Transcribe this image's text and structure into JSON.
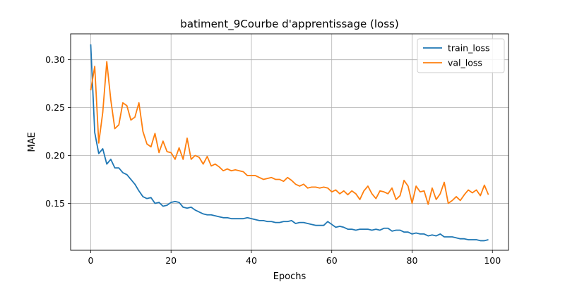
{
  "chart_data": {
    "type": "line",
    "title": "batiment_9Courbe d'apprentissage (loss)",
    "xlabel": "Epochs",
    "ylabel": "MAE",
    "xlim": [
      -5,
      104
    ],
    "ylim": [
      0.101,
      0.327
    ],
    "xticks": [
      0,
      20,
      40,
      60,
      80,
      100
    ],
    "yticks": [
      0.15,
      0.2,
      0.25,
      0.3
    ],
    "ytick_labels": [
      "0.15",
      "0.20",
      "0.25",
      "0.30"
    ],
    "grid": true,
    "legend_position": "top-right",
    "series": [
      {
        "name": "train_loss",
        "color": "#1f77b4",
        "x": [
          0,
          1,
          2,
          3,
          4,
          5,
          6,
          7,
          8,
          9,
          10,
          11,
          12,
          13,
          14,
          15,
          16,
          17,
          18,
          19,
          20,
          21,
          22,
          23,
          24,
          25,
          26,
          27,
          28,
          29,
          30,
          31,
          32,
          33,
          34,
          35,
          36,
          37,
          38,
          39,
          40,
          41,
          42,
          43,
          44,
          45,
          46,
          47,
          48,
          49,
          50,
          51,
          52,
          53,
          54,
          55,
          56,
          57,
          58,
          59,
          60,
          61,
          62,
          63,
          64,
          65,
          66,
          67,
          68,
          69,
          70,
          71,
          72,
          73,
          74,
          75,
          76,
          77,
          78,
          79,
          80,
          81,
          82,
          83,
          84,
          85,
          86,
          87,
          88,
          89,
          90,
          91,
          92,
          93,
          94,
          95,
          96,
          97,
          98,
          99
        ],
        "values": [
          0.316,
          0.224,
          0.202,
          0.207,
          0.191,
          0.196,
          0.187,
          0.187,
          0.182,
          0.18,
          0.175,
          0.17,
          0.163,
          0.157,
          0.155,
          0.156,
          0.15,
          0.151,
          0.147,
          0.148,
          0.151,
          0.152,
          0.151,
          0.146,
          0.145,
          0.146,
          0.143,
          0.141,
          0.139,
          0.138,
          0.138,
          0.137,
          0.136,
          0.135,
          0.135,
          0.134,
          0.134,
          0.134,
          0.134,
          0.135,
          0.134,
          0.133,
          0.132,
          0.132,
          0.131,
          0.131,
          0.13,
          0.13,
          0.131,
          0.131,
          0.132,
          0.129,
          0.13,
          0.13,
          0.129,
          0.128,
          0.127,
          0.127,
          0.127,
          0.131,
          0.128,
          0.125,
          0.126,
          0.125,
          0.123,
          0.123,
          0.122,
          0.123,
          0.123,
          0.123,
          0.122,
          0.123,
          0.122,
          0.124,
          0.124,
          0.121,
          0.122,
          0.122,
          0.12,
          0.12,
          0.118,
          0.119,
          0.118,
          0.118,
          0.116,
          0.117,
          0.116,
          0.118,
          0.115,
          0.115,
          0.115,
          0.114,
          0.113,
          0.113,
          0.112,
          0.112,
          0.112,
          0.111,
          0.111,
          0.112
        ]
      },
      {
        "name": "val_loss",
        "color": "#ff7f0e",
        "x": [
          0,
          1,
          2,
          3,
          4,
          5,
          6,
          7,
          8,
          9,
          10,
          11,
          12,
          13,
          14,
          15,
          16,
          17,
          18,
          19,
          20,
          21,
          22,
          23,
          24,
          25,
          26,
          27,
          28,
          29,
          30,
          31,
          32,
          33,
          34,
          35,
          36,
          37,
          38,
          39,
          40,
          41,
          42,
          43,
          44,
          45,
          46,
          47,
          48,
          49,
          50,
          51,
          52,
          53,
          54,
          55,
          56,
          57,
          58,
          59,
          60,
          61,
          62,
          63,
          64,
          65,
          66,
          67,
          68,
          69,
          70,
          71,
          72,
          73,
          74,
          75,
          76,
          77,
          78,
          79,
          80,
          81,
          82,
          83,
          84,
          85,
          86,
          87,
          88,
          89,
          90,
          91,
          92,
          93,
          94,
          95,
          96,
          97,
          98,
          99
        ],
        "values": [
          0.268,
          0.293,
          0.213,
          0.245,
          0.298,
          0.258,
          0.228,
          0.232,
          0.255,
          0.252,
          0.237,
          0.24,
          0.255,
          0.225,
          0.212,
          0.209,
          0.223,
          0.203,
          0.215,
          0.204,
          0.203,
          0.196,
          0.208,
          0.196,
          0.218,
          0.196,
          0.2,
          0.198,
          0.191,
          0.199,
          0.189,
          0.191,
          0.188,
          0.184,
          0.186,
          0.184,
          0.185,
          0.184,
          0.183,
          0.179,
          0.179,
          0.179,
          0.177,
          0.175,
          0.176,
          0.177,
          0.175,
          0.175,
          0.173,
          0.177,
          0.174,
          0.17,
          0.168,
          0.17,
          0.166,
          0.167,
          0.167,
          0.166,
          0.167,
          0.166,
          0.162,
          0.164,
          0.16,
          0.163,
          0.159,
          0.163,
          0.16,
          0.154,
          0.163,
          0.168,
          0.16,
          0.155,
          0.163,
          0.162,
          0.16,
          0.166,
          0.154,
          0.158,
          0.174,
          0.168,
          0.15,
          0.168,
          0.162,
          0.163,
          0.149,
          0.166,
          0.154,
          0.16,
          0.172,
          0.15,
          0.153,
          0.157,
          0.153,
          0.159,
          0.164,
          0.161,
          0.164,
          0.158,
          0.169,
          0.159
        ]
      }
    ]
  }
}
